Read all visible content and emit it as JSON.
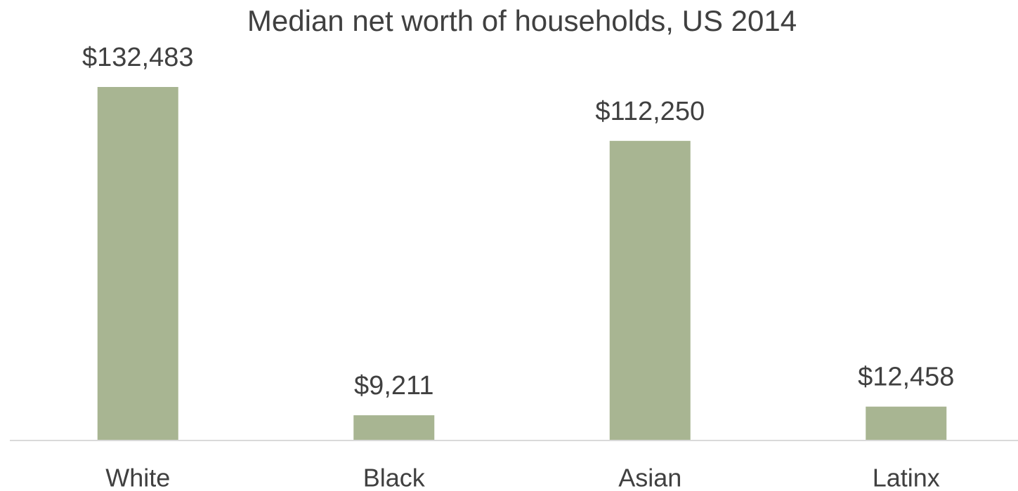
{
  "chart_data": {
    "type": "bar",
    "title": "Median net worth of households, US 2014",
    "categories": [
      "White",
      "Black",
      "Asian",
      "Latinx"
    ],
    "values": [
      132483,
      9211,
      112250,
      12458
    ],
    "value_labels": [
      "$132,483",
      "$9,211",
      "$112,250",
      "$12,458"
    ],
    "color": "#a8b592"
  }
}
